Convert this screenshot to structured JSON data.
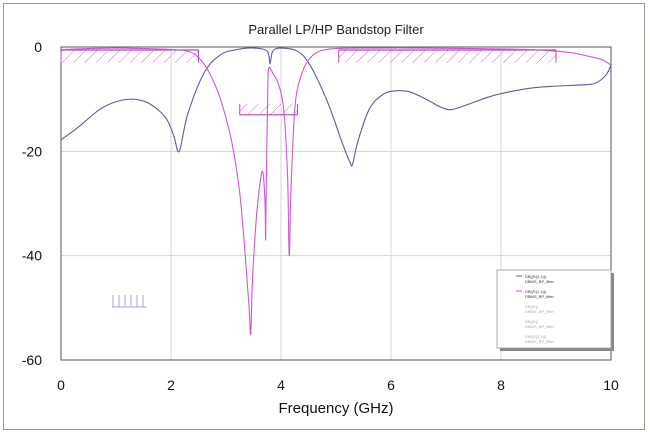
{
  "chart_data": {
    "type": "line",
    "title": "Parallel LP/HP Bandstop Filter",
    "xlabel": "Frequency (GHz)",
    "ylabel": "",
    "xlim": [
      0,
      10
    ],
    "ylim": [
      -60,
      0
    ],
    "xticks": [
      "0",
      "2",
      "4",
      "6",
      "8",
      "10"
    ],
    "yticks": [
      "0",
      "-20",
      "-40",
      "-60"
    ],
    "grid": true,
    "legend_placement": "bottom-right",
    "legend_entries": [
      "DB(|S(2,1)|)",
      "DBMS_BP_filter",
      "DB(|S(1,1)|)",
      "DBMS_BP_filter",
      "DB(|S|)",
      "DBMS_BP_filter",
      "DB(|S|)",
      "DBMS_BP_filter",
      "DB(|S(2,1)|)",
      "DBMS_BP_filter"
    ],
    "colors": {
      "blue": "#5c5c9c",
      "magenta": "#c85ad2",
      "mask": "#c040c8",
      "grid": "#d4d4d4"
    },
    "series": [
      {
        "color_key": "blue",
        "x": [
          0,
          0.3,
          0.7,
          1.0,
          1.3,
          1.6,
          1.9,
          2.05,
          2.15,
          2.3,
          2.6,
          2.9,
          3.2,
          3.5,
          3.75,
          3.8,
          3.85,
          4.0,
          4.3,
          4.5,
          4.7,
          4.9,
          5.1,
          5.25,
          5.3,
          5.4,
          5.6,
          5.8,
          6.0,
          6.3,
          6.6,
          6.9,
          7.1,
          7.4,
          7.8,
          8.2,
          8.6,
          9.0,
          9.4,
          9.7,
          9.9,
          10
        ],
        "y": [
          -17.8,
          -15.5,
          -12,
          -10.5,
          -10,
          -10.8,
          -13.5,
          -17,
          -20,
          -13,
          -5,
          -1.5,
          -0.5,
          -0.2,
          -0.8,
          -3.2,
          -0.8,
          -0.2,
          -0.8,
          -3,
          -7,
          -12,
          -18,
          -22,
          -22.5,
          -18,
          -12,
          -9.5,
          -8.5,
          -8.5,
          -9.8,
          -11.5,
          -12,
          -11,
          -9.5,
          -8.5,
          -7.8,
          -7.5,
          -7.3,
          -7,
          -5.5,
          -3.5
        ]
      },
      {
        "color_key": "magenta",
        "x": [
          0,
          0.5,
          1.0,
          1.5,
          2.0,
          2.3,
          2.5,
          2.7,
          2.9,
          3.1,
          3.25,
          3.35,
          3.42,
          3.45,
          3.48,
          3.55,
          3.62,
          3.67,
          3.71,
          3.72,
          3.73,
          3.76,
          3.78,
          3.85,
          3.95,
          4.05,
          4.12,
          4.15,
          4.18,
          4.25,
          4.35,
          4.5,
          4.7,
          5.0,
          5.5,
          6.5,
          7.5,
          8.5,
          9.2,
          9.6,
          9.85,
          10
        ],
        "y": [
          -0.5,
          -0.3,
          -0.2,
          -0.3,
          -0.5,
          -0.8,
          -2,
          -5,
          -10,
          -18,
          -28,
          -40,
          -50,
          -55,
          -45,
          -33,
          -26,
          -24,
          -30,
          -37,
          -28,
          -8,
          -4,
          -5,
          -7,
          -12,
          -25,
          -40,
          -28,
          -12,
          -6,
          -2.5,
          -0.8,
          -0.3,
          -0.2,
          -0.2,
          -0.3,
          -0.5,
          -1,
          -1.8,
          -2.5,
          -3.5
        ]
      }
    ],
    "masks": [
      {
        "x": [
          0,
          2.5
        ],
        "y": -3
      },
      {
        "x": [
          3.25,
          4.3
        ],
        "y": -13
      },
      {
        "x": [
          5.05,
          9.0
        ],
        "y": -3
      }
    ]
  }
}
